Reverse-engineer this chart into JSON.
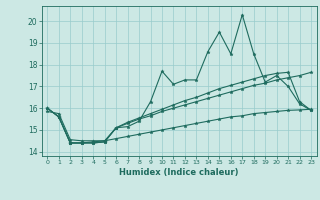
{
  "xlabel": "Humidex (Indice chaleur)",
  "bg_color": "#cce8e4",
  "line_color": "#1e6b5e",
  "grid_color": "#99cccc",
  "xlim": [
    -0.5,
    23.5
  ],
  "ylim": [
    13.8,
    20.7
  ],
  "xticks": [
    0,
    1,
    2,
    3,
    4,
    5,
    6,
    7,
    8,
    9,
    10,
    11,
    12,
    13,
    14,
    15,
    16,
    17,
    18,
    19,
    20,
    21,
    22,
    23
  ],
  "yticks": [
    14,
    15,
    16,
    17,
    18,
    19,
    20
  ],
  "line1_y": [
    16.0,
    15.6,
    14.4,
    14.4,
    14.4,
    14.45,
    15.1,
    15.15,
    15.4,
    16.3,
    17.7,
    17.1,
    17.3,
    17.3,
    18.6,
    19.5,
    18.5,
    20.3,
    18.5,
    17.2,
    17.5,
    17.0,
    16.2,
    15.9
  ],
  "line2_y": [
    16.0,
    15.6,
    14.4,
    14.4,
    14.45,
    14.5,
    15.1,
    15.3,
    15.5,
    15.65,
    15.85,
    16.0,
    16.15,
    16.3,
    16.45,
    16.6,
    16.75,
    16.9,
    17.05,
    17.15,
    17.3,
    17.4,
    17.5,
    17.65
  ],
  "line3_y": [
    15.85,
    15.75,
    14.55,
    14.5,
    14.5,
    14.5,
    14.6,
    14.7,
    14.8,
    14.9,
    15.0,
    15.1,
    15.2,
    15.3,
    15.4,
    15.5,
    15.6,
    15.65,
    15.75,
    15.8,
    15.85,
    15.9,
    15.92,
    15.95
  ],
  "line4_y": [
    16.0,
    15.6,
    14.4,
    14.4,
    14.4,
    14.45,
    15.1,
    15.35,
    15.55,
    15.75,
    15.95,
    16.15,
    16.35,
    16.5,
    16.7,
    16.9,
    17.05,
    17.2,
    17.35,
    17.5,
    17.6,
    17.65,
    16.3,
    15.9
  ]
}
